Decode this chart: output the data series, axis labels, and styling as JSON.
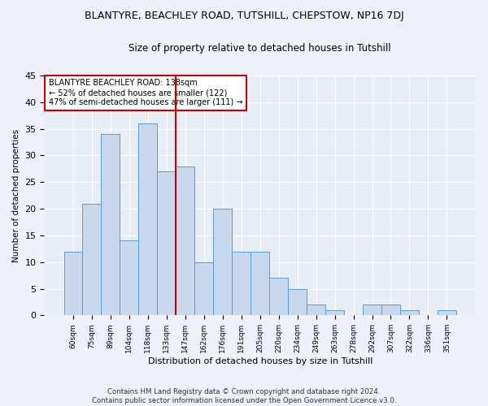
{
  "title_line1": "BLANTYRE, BEACHLEY ROAD, TUTSHILL, CHEPSTOW, NP16 7DJ",
  "title_line2": "Size of property relative to detached houses in Tutshill",
  "xlabel": "Distribution of detached houses by size in Tutshill",
  "ylabel": "Number of detached properties",
  "categories": [
    "60sqm",
    "75sqm",
    "89sqm",
    "104sqm",
    "118sqm",
    "133sqm",
    "147sqm",
    "162sqm",
    "176sqm",
    "191sqm",
    "205sqm",
    "220sqm",
    "234sqm",
    "249sqm",
    "263sqm",
    "278sqm",
    "292sqm",
    "307sqm",
    "322sqm",
    "336sqm",
    "351sqm"
  ],
  "values": [
    12,
    21,
    34,
    14,
    36,
    27,
    28,
    10,
    20,
    12,
    12,
    7,
    5,
    2,
    1,
    0,
    2,
    2,
    1,
    0,
    1
  ],
  "bar_color": "#c9d9ed",
  "bar_edge_color": "#5b9bd5",
  "vline_x": 5.5,
  "vline_color": "#cc0000",
  "annotation_title": "BLANTYRE BEACHLEY ROAD: 138sqm",
  "annotation_line2": "← 52% of detached houses are smaller (122)",
  "annotation_line3": "47% of semi-detached houses are larger (111) →",
  "annotation_box_color": "#ffffff",
  "annotation_box_edge": "#cc0000",
  "ylim": [
    0,
    45
  ],
  "yticks": [
    0,
    5,
    10,
    15,
    20,
    25,
    30,
    35,
    40,
    45
  ],
  "footer": "Contains HM Land Registry data © Crown copyright and database right 2024.\nContains public sector information licensed under the Open Government Licence v3.0.",
  "bg_color": "#eef2f8",
  "plot_bg_color": "#e8eef6"
}
